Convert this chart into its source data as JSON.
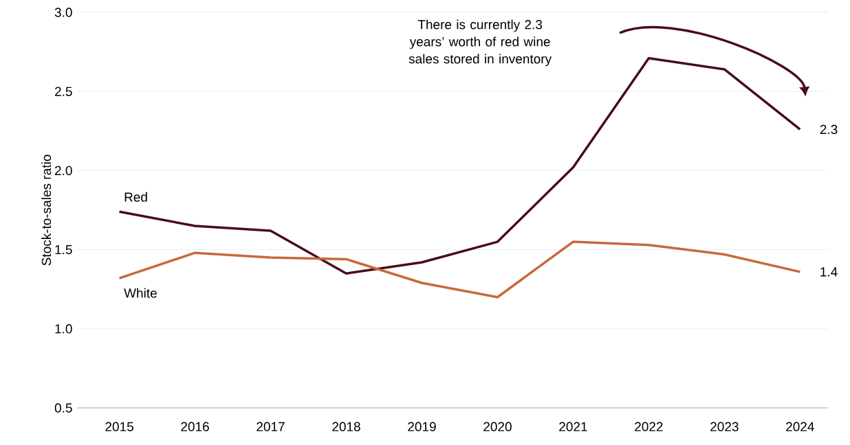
{
  "chart_data": {
    "type": "line",
    "ylabel": "Stock-to-sales ratio",
    "categories": [
      "2015",
      "2016",
      "2017",
      "2018",
      "2019",
      "2020",
      "2021",
      "2022",
      "2023",
      "2024"
    ],
    "series": [
      {
        "name": "Red",
        "color": "#4a0a1e",
        "values": [
          1.74,
          1.65,
          1.62,
          1.35,
          1.42,
          1.55,
          2.02,
          2.71,
          2.64,
          2.26
        ],
        "value_labels": [
          null,
          null,
          null,
          null,
          null,
          null,
          null,
          null,
          null,
          "2.3"
        ]
      },
      {
        "name": "White",
        "color": "#c8683c",
        "values": [
          1.32,
          1.48,
          1.45,
          1.44,
          1.29,
          1.2,
          1.55,
          1.53,
          1.47,
          1.36
        ],
        "value_labels": [
          null,
          null,
          null,
          null,
          null,
          null,
          null,
          null,
          null,
          "1.4"
        ]
      }
    ],
    "ylim": [
      0.5,
      3.0
    ],
    "yticks": [
      {
        "value": 0.5,
        "label": "0.5"
      },
      {
        "value": 1.0,
        "label": "1.0"
      },
      {
        "value": 1.5,
        "label": "1.5"
      },
      {
        "value": 2.0,
        "label": "2.0"
      },
      {
        "value": 2.5,
        "label": "2.5"
      },
      {
        "value": 3.0,
        "label": "3.0"
      }
    ],
    "grid": "y",
    "marker": "none",
    "line_style": "solid",
    "annotations": [
      "There is currently 2.3 years’ worth of red wine sales stored in inventory"
    ]
  }
}
